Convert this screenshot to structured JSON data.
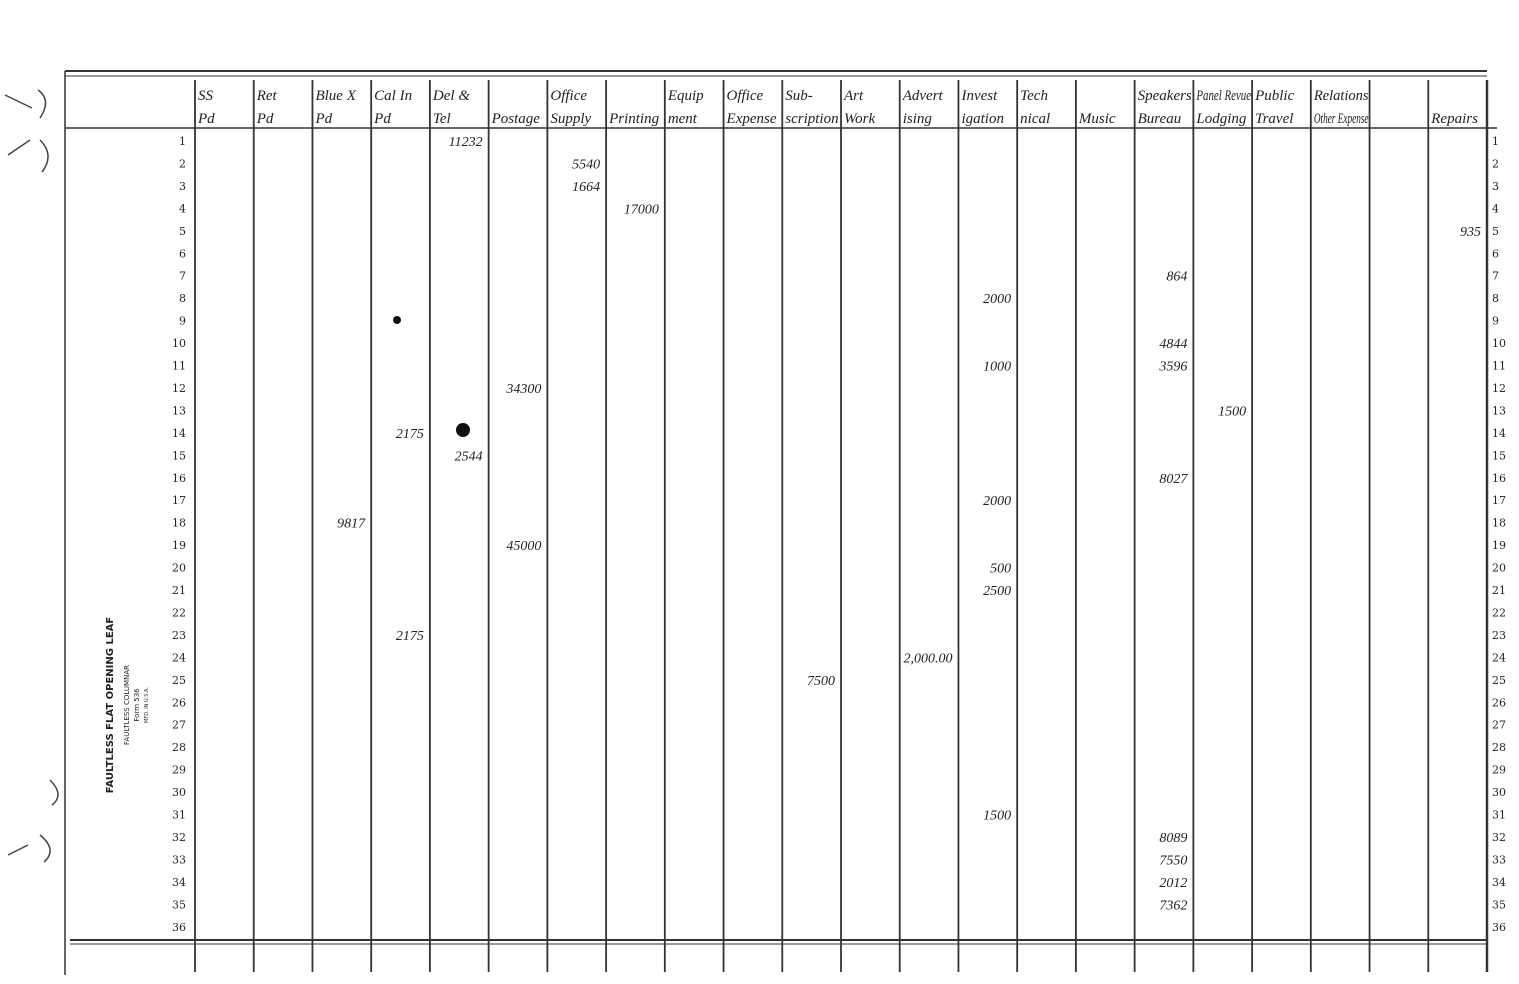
{
  "ledger": {
    "form_label": {
      "title": "FAULTLESS FLAT OPENING LEAF",
      "subtitle": "FAULTLESS COLUMNAR",
      "form": "Form 536",
      "maker": "MFD. IN U.S.A."
    },
    "headers": [
      {
        "lines": [
          "SS",
          "Pd"
        ]
      },
      {
        "lines": [
          "Ret",
          "Pd"
        ]
      },
      {
        "lines": [
          "Blue X",
          "Pd"
        ]
      },
      {
        "lines": [
          "Cal In",
          "Pd"
        ]
      },
      {
        "lines": [
          "Del &",
          "Tel"
        ]
      },
      {
        "lines": [
          "",
          "Postage"
        ]
      },
      {
        "lines": [
          "Office",
          "Supply"
        ]
      },
      {
        "lines": [
          "",
          "Printing"
        ]
      },
      {
        "lines": [
          "Equip",
          "ment"
        ]
      },
      {
        "lines": [
          "Office",
          "Expense"
        ]
      },
      {
        "lines": [
          "Sub-",
          "scription"
        ]
      },
      {
        "lines": [
          "Art",
          "Work"
        ]
      },
      {
        "lines": [
          "Advert",
          "ising"
        ]
      },
      {
        "lines": [
          "Invest",
          "igation"
        ]
      },
      {
        "lines": [
          "Tech",
          "nical"
        ]
      },
      {
        "lines": [
          "",
          "Music"
        ]
      },
      {
        "lines": [
          "Speakers",
          "Bureau"
        ]
      },
      {
        "lines": [
          "Panel Revue",
          "Lodging"
        ]
      },
      {
        "lines": [
          "Public",
          "Travel"
        ]
      },
      {
        "lines": [
          "Relations",
          "Other Expense"
        ]
      },
      {
        "lines": []
      },
      {
        "lines": [
          "",
          "Repairs"
        ]
      }
    ],
    "rows": [
      {
        "number": 1,
        "entries": {
          "4": "11232"
        }
      },
      {
        "number": 2,
        "entries": {
          "6": "5540"
        }
      },
      {
        "number": 3,
        "entries": {
          "6": "1664"
        }
      },
      {
        "number": 4,
        "entries": {
          "7": "17000"
        }
      },
      {
        "number": 5,
        "entries": {
          "21": "935"
        }
      },
      {
        "number": 6,
        "entries": {}
      },
      {
        "number": 7,
        "entries": {
          "16": "864"
        }
      },
      {
        "number": 8,
        "entries": {
          "13": "2000"
        }
      },
      {
        "number": 9,
        "entries": {}
      },
      {
        "number": 10,
        "entries": {
          "16": "4844"
        }
      },
      {
        "number": 11,
        "entries": {
          "13": "1000",
          "16": "3596"
        }
      },
      {
        "number": 12,
        "entries": {
          "5": "34300"
        }
      },
      {
        "number": 13,
        "entries": {
          "17": "1500"
        }
      },
      {
        "number": 14,
        "entries": {
          "3": "2175"
        }
      },
      {
        "number": 15,
        "entries": {
          "4": "2544"
        }
      },
      {
        "number": 16,
        "entries": {
          "16": "8027"
        }
      },
      {
        "number": 17,
        "entries": {
          "13": "2000"
        }
      },
      {
        "number": 18,
        "entries": {
          "2": "9817"
        }
      },
      {
        "number": 19,
        "entries": {
          "5": "45000"
        }
      },
      {
        "number": 20,
        "entries": {
          "13": "500"
        }
      },
      {
        "number": 21,
        "entries": {
          "13": "2500"
        }
      },
      {
        "number": 22,
        "entries": {}
      },
      {
        "number": 23,
        "entries": {
          "3": "2175"
        }
      },
      {
        "number": 24,
        "entries": {
          "12": "2,000.00"
        }
      },
      {
        "number": 25,
        "entries": {
          "10": "7500"
        }
      },
      {
        "number": 26,
        "entries": {}
      },
      {
        "number": 27,
        "entries": {}
      },
      {
        "number": 28,
        "entries": {}
      },
      {
        "number": 29,
        "entries": {}
      },
      {
        "number": 30,
        "entries": {}
      },
      {
        "number": 31,
        "entries": {
          "13": "1500"
        }
      },
      {
        "number": 32,
        "entries": {
          "16": "8089"
        }
      },
      {
        "number": 33,
        "entries": {
          "16": "7550"
        }
      },
      {
        "number": 34,
        "entries": {
          "16": "2012"
        }
      },
      {
        "number": 35,
        "entries": {
          "16": "7362"
        }
      },
      {
        "number": 36,
        "entries": {}
      }
    ]
  }
}
